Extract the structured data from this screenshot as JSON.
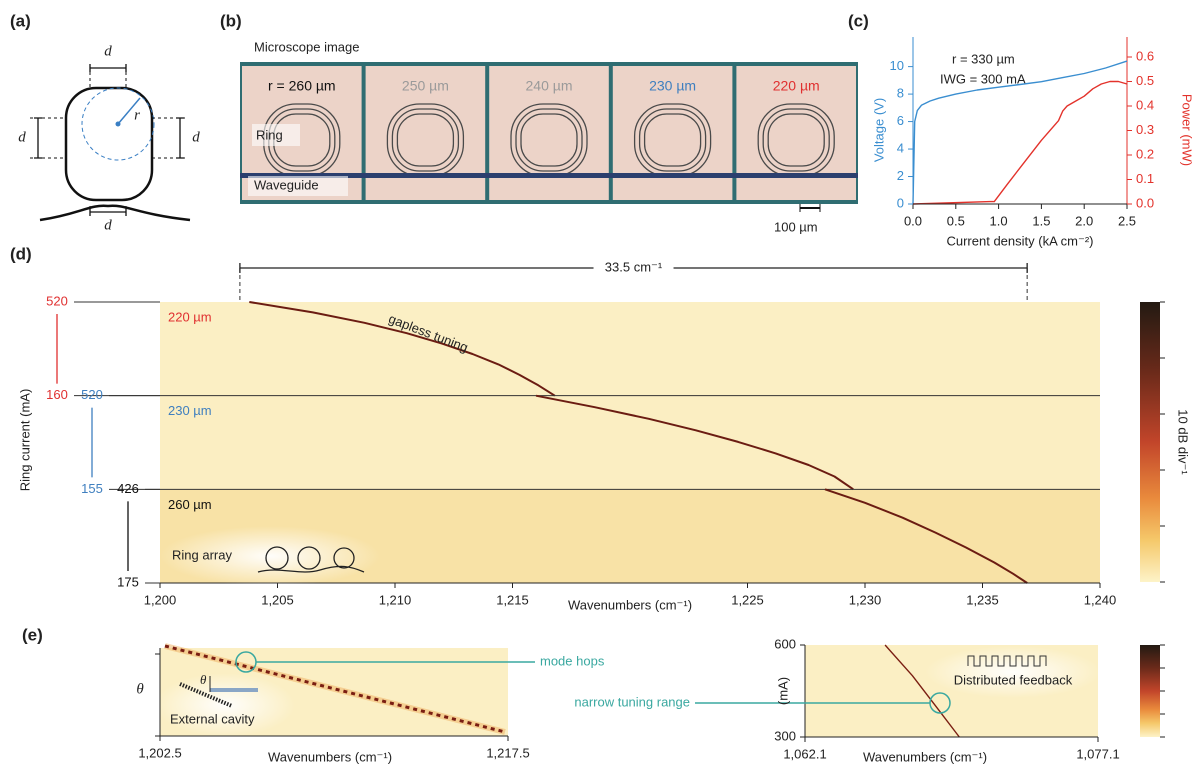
{
  "figure": {
    "panel_labels": [
      "(a)",
      "(b)",
      "(c)",
      "(d)",
      "(e)"
    ],
    "a": {
      "labels": [
        "d",
        "d",
        "d",
        "d",
        "r"
      ]
    },
    "b": {
      "title": "Microscope image",
      "radii": [
        "r = 260 µm",
        "250 µm",
        "240 µm",
        "230 µm",
        "220 µm"
      ],
      "radius_colors": [
        "#111111",
        "#9a9a9a",
        "#9a9a9a",
        "#3f7fbf",
        "#e03030"
      ],
      "ring_label": "Ring",
      "waveguide_label": "Waveguide",
      "scale_bar": "100 µm"
    }
  },
  "chart_data": [
    {
      "type": "line",
      "xlabel": "Current density (kA cm⁻²)",
      "ylabel": "Voltage (V)",
      "y2label": "Power (mW)",
      "annotations": [
        "r = 330 µm",
        "IWG = 300 mA"
      ],
      "xlim": [
        0,
        2.5
      ],
      "xticks": [
        {
          "value": 0,
          "label": "0.0"
        },
        0.5,
        {
          "value": 1,
          "label": "1.0"
        },
        1.5,
        {
          "value": 2,
          "label": "2.0"
        },
        2.5
      ],
      "ylim": [
        0,
        10.7
      ],
      "yticks": [
        0,
        2,
        4,
        6,
        8,
        10
      ],
      "y2lim": [
        0,
        0.6
      ],
      "y2ticks": [
        {
          "value": 0,
          "label": "0.0"
        },
        0.1,
        0.2,
        0.3,
        0.4,
        0.5,
        0.6
      ],
      "series": [
        {
          "color": "#3a8ed0",
          "x": [
            0,
            0.02,
            0.05,
            0.1,
            0.2,
            0.3,
            0.5,
            0.75,
            1.0,
            1.25,
            1.5,
            1.75,
            2.0,
            2.25,
            2.5
          ],
          "values": [
            0,
            6,
            6.8,
            7.2,
            7.5,
            7.7,
            8.0,
            8.3,
            8.5,
            8.7,
            8.9,
            9.2,
            9.5,
            9.9,
            10.4
          ]
        },
        {
          "color": "#e3322b",
          "axis": "y2",
          "x": [
            0,
            0.9,
            0.95,
            1.1,
            1.3,
            1.5,
            1.7,
            1.75,
            1.8,
            1.9,
            2.0,
            2.1,
            2.2,
            2.3,
            2.4,
            2.5
          ],
          "values": [
            0,
            0.01,
            0.01,
            0.08,
            0.17,
            0.26,
            0.34,
            0.38,
            0.4,
            0.42,
            0.44,
            0.47,
            0.49,
            0.5,
            0.5,
            0.49
          ]
        }
      ]
    },
    {
      "type": "line",
      "xlabel": "Wavenumbers (cm⁻¹)",
      "ylabel": "Ring current (mA)",
      "xlim": [
        1200,
        1240
      ],
      "xticks": [
        {
          "value": 1200,
          "label": "1,200"
        },
        {
          "value": 1205,
          "label": "1,205"
        },
        {
          "value": 1210,
          "label": "1,210"
        },
        {
          "value": 1215,
          "label": "1,215"
        },
        {
          "value": 1225,
          "label": "1,225"
        },
        {
          "value": 1230,
          "label": "1,230"
        },
        {
          "value": 1235,
          "label": "1,235"
        },
        {
          "value": 1240,
          "label": "1,240"
        }
      ],
      "trace_color": "#6b1c12",
      "span": [
        1203.4,
        1236.9
      ],
      "span_label": "33.5 cm⁻¹",
      "annotations": [
        "gapless tuning",
        "Ring array"
      ],
      "colorbar_label": "10 dB div⁻¹",
      "series": [
        {
          "name": "220 µm",
          "color": "#e03030",
          "ylim": [
            160,
            520
          ],
          "yticks": [
            520,
            160
          ],
          "x": [
            1203.8,
            1206.5,
            1208.7,
            1210.5,
            1212,
            1213.3,
            1214.4,
            1215.3,
            1216.1,
            1216.8
          ],
          "values": [
            520,
            480,
            440,
            400,
            360,
            320,
            280,
            240,
            200,
            160
          ]
        },
        {
          "name": "230 µm",
          "color": "#3f7fbf",
          "ylim": [
            155,
            520
          ],
          "yticks": [
            520,
            155
          ],
          "x": [
            1216,
            1218.5,
            1220.8,
            1222.8,
            1224.6,
            1226.2,
            1227.6,
            1228.7,
            1229.5
          ],
          "values": [
            520,
            475,
            430,
            385,
            340,
            295,
            250,
            205,
            155
          ]
        },
        {
          "name": "260 µm",
          "color": "#111111",
          "ylim": [
            175,
            426
          ],
          "yticks": [
            426,
            175
          ],
          "x": [
            1228.3,
            1230,
            1231.6,
            1233,
            1234.3,
            1235.5,
            1236.3,
            1236.9
          ],
          "values": [
            426,
            390,
            350,
            310,
            270,
            230,
            200,
            175
          ]
        }
      ]
    },
    {
      "type": "line",
      "xlabel": "Wavenumbers (cm⁻¹)",
      "ylabel": "θ",
      "xlim": [
        1202.5,
        1217.5
      ],
      "xticks": [
        {
          "value": 1202.5,
          "label": "1,202.5"
        },
        {
          "value": 1217.5,
          "label": "1,217.5"
        }
      ],
      "annotations": [
        "mode hops",
        "θ",
        "External cavity"
      ]
    },
    {
      "type": "line",
      "xlabel": "Wavenumbers (cm⁻¹)",
      "ylabel": "(mA)",
      "xlim": [
        1062.1,
        1077.1
      ],
      "xticks": [
        {
          "value": 1062.1,
          "label": "1,062.1"
        },
        {
          "value": 1077.1,
          "label": "1,077.1"
        }
      ],
      "ylim": [
        300,
        600
      ],
      "yticks": [
        300,
        600
      ],
      "annotations": [
        "narrow tuning range",
        "Distributed feedback"
      ],
      "series": [
        {
          "color": "#7a1e12",
          "x": [
            1066.2,
            1067.6,
            1068.8,
            1070
          ],
          "values": [
            600,
            500,
            400,
            300
          ]
        }
      ]
    }
  ]
}
